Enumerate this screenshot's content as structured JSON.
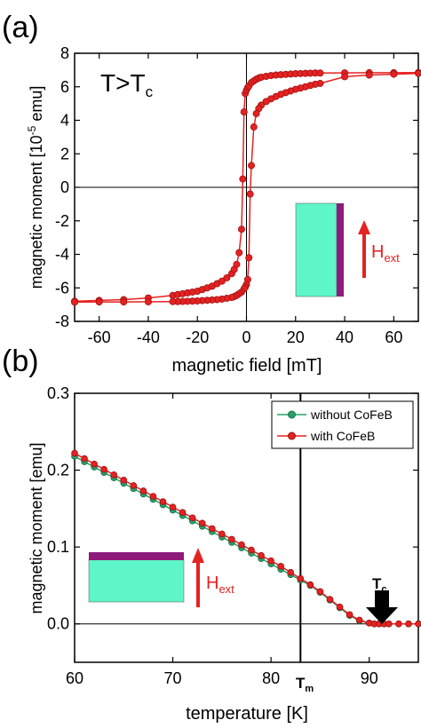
{
  "panels": {
    "a": {
      "letter": "(a)",
      "annotation_main": "T>T",
      "annotation_sub": "c",
      "hext_main": "H",
      "hext_sub": "ext",
      "ylabel_prefix": "magnetic moment [10",
      "ylabel_exp": "-5",
      "ylabel_suffix": " emu]"
    },
    "b": {
      "letter": "(b)",
      "tm_main": "T",
      "tm_sub": "m",
      "tc_main": "T",
      "tc_sub": "c",
      "hext_main": "H",
      "hext_sub": "ext"
    }
  },
  "colors": {
    "red": "#e52222",
    "green": "#2aa06a",
    "cyan": "#5ef5c8",
    "purple": "#8e1a7a"
  },
  "chart_data": [
    {
      "type": "line",
      "panel": "a",
      "xlabel": "magnetic field [mT]",
      "xlim": [
        -70,
        70
      ],
      "ylim": [
        -8,
        8
      ],
      "xticks": [
        -60,
        -40,
        -20,
        0,
        20,
        40,
        60
      ],
      "yticks": [
        -8,
        -6,
        -4,
        -2,
        0,
        2,
        4,
        6,
        8
      ],
      "series": [
        {
          "color": "#e52222",
          "x": [
            -70,
            -60,
            -50,
            -40,
            -30,
            -28,
            -26,
            -24,
            -22,
            -20,
            -18,
            -16,
            -14,
            -12,
            -10,
            -8,
            -6,
            -5,
            -4,
            -3,
            -2,
            -1.5,
            -1,
            -0.5,
            0,
            0.5,
            1,
            2,
            3,
            4,
            5,
            6,
            8,
            10,
            12,
            14,
            16,
            18,
            20,
            22,
            24,
            26,
            28,
            30,
            40,
            50,
            60,
            70
          ],
          "y": [
            -6.8,
            -6.75,
            -6.7,
            -6.6,
            -6.45,
            -6.4,
            -6.35,
            -6.3,
            -6.25,
            -6.2,
            -6.1,
            -6.0,
            -5.9,
            -5.75,
            -5.6,
            -5.4,
            -5.15,
            -4.9,
            -4.6,
            -3.9,
            -2.5,
            0.5,
            4.5,
            5.6,
            5.8,
            5.95,
            6.05,
            6.25,
            6.35,
            6.45,
            6.52,
            6.57,
            6.62,
            6.67,
            6.7,
            6.72,
            6.74,
            6.76,
            6.78,
            6.79,
            6.8,
            6.81,
            6.82,
            6.82,
            6.83,
            6.84,
            6.84,
            6.85
          ]
        },
        {
          "color": "#e52222",
          "x": [
            70,
            60,
            50,
            40,
            30,
            28,
            26,
            24,
            22,
            20,
            18,
            16,
            14,
            12,
            10,
            8,
            6,
            5,
            4,
            3,
            2,
            1.5,
            1,
            0.5,
            0,
            -0.5,
            -1,
            -2,
            -3,
            -4,
            -5,
            -6,
            -8,
            -10,
            -12,
            -14,
            -16,
            -18,
            -20,
            -22,
            -24,
            -26,
            -28,
            -30,
            -40,
            -50,
            -60,
            -70
          ],
          "y": [
            6.8,
            6.75,
            6.7,
            6.6,
            6.2,
            6.15,
            6.08,
            6.0,
            5.92,
            5.85,
            5.75,
            5.65,
            5.55,
            5.42,
            5.28,
            5.12,
            4.9,
            4.7,
            4.4,
            3.6,
            1.3,
            -0.4,
            -4.2,
            -5.5,
            -5.8,
            -5.95,
            -6.05,
            -6.25,
            -6.35,
            -6.45,
            -6.52,
            -6.57,
            -6.62,
            -6.67,
            -6.7,
            -6.72,
            -6.74,
            -6.76,
            -6.78,
            -6.79,
            -6.8,
            -6.81,
            -6.82,
            -6.82,
            -6.83,
            -6.84,
            -6.84,
            -6.85
          ]
        }
      ]
    },
    {
      "type": "line",
      "panel": "b",
      "xlabel": "temperature [K]",
      "ylabel": "magnetic moment [emu]",
      "xlim": [
        60,
        95
      ],
      "ylim": [
        -0.05,
        0.3
      ],
      "xticks": [
        60,
        70,
        80,
        90
      ],
      "yticks": [
        0.0,
        0.1,
        0.2,
        0.3
      ],
      "ytick_labels": [
        "0.0",
        "0.1",
        "0.2",
        "0.3"
      ],
      "vline_x": 83,
      "legend_position": "top-right",
      "series": [
        {
          "name": "without CoFeB",
          "color": "#2aa06a",
          "x": [
            60,
            61,
            62,
            63,
            64,
            65,
            66,
            67,
            68,
            69,
            70,
            71,
            72,
            73,
            74,
            75,
            76,
            77,
            78,
            79,
            80,
            81,
            82,
            83,
            84,
            85,
            86,
            87,
            88,
            89,
            90,
            90.5,
            91,
            91.5,
            92,
            93,
            94,
            95
          ],
          "y": [
            0.218,
            0.211,
            0.204,
            0.197,
            0.19,
            0.183,
            0.176,
            0.169,
            0.162,
            0.155,
            0.148,
            0.141,
            0.134,
            0.127,
            0.12,
            0.113,
            0.106,
            0.099,
            0.092,
            0.085,
            0.078,
            0.071,
            0.064,
            0.057,
            0.05,
            0.041,
            0.031,
            0.021,
            0.011,
            0.004,
            0.001,
            0.0,
            0.0,
            0.0,
            0.0,
            0.0,
            0.0,
            0.0
          ]
        },
        {
          "name": "with CoFeB",
          "color": "#e52222",
          "x": [
            60,
            61,
            62,
            63,
            64,
            65,
            66,
            67,
            68,
            69,
            70,
            71,
            72,
            73,
            74,
            75,
            76,
            77,
            78,
            79,
            80,
            81,
            82,
            83,
            84,
            85,
            86,
            87,
            88,
            89,
            90,
            90.5,
            91,
            91.5,
            92,
            93,
            94,
            95
          ],
          "y": [
            0.222,
            0.215,
            0.208,
            0.201,
            0.194,
            0.187,
            0.18,
            0.173,
            0.166,
            0.159,
            0.152,
            0.145,
            0.138,
            0.131,
            0.124,
            0.117,
            0.11,
            0.103,
            0.096,
            0.089,
            0.082,
            0.075,
            0.067,
            0.059,
            0.051,
            0.042,
            0.032,
            0.022,
            0.012,
            0.005,
            0.001,
            0.0,
            0.0,
            0.0,
            0.0,
            0.0,
            0.0,
            0.0
          ]
        }
      ]
    }
  ]
}
